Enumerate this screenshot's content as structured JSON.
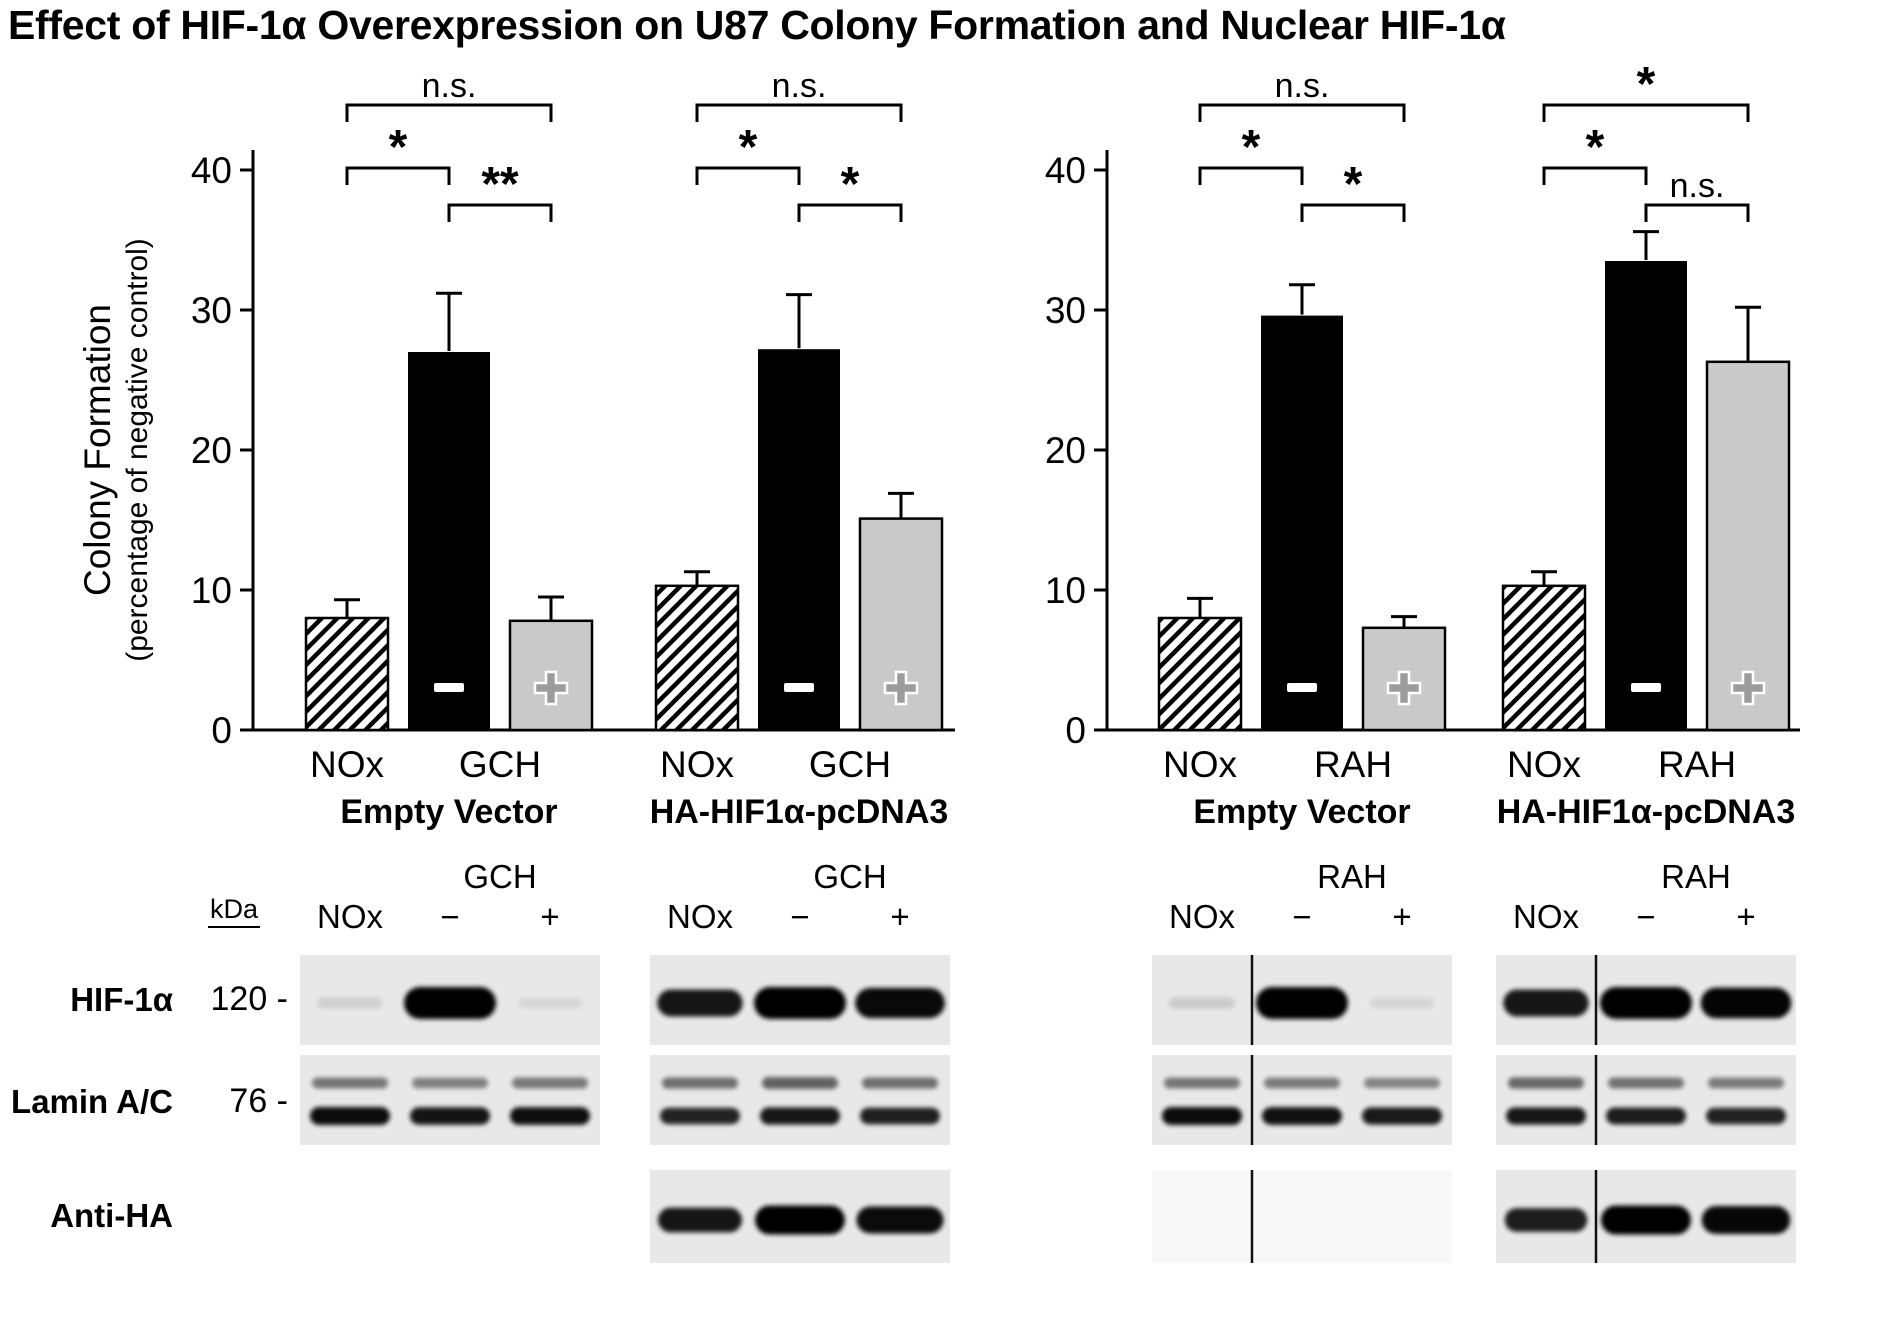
{
  "title": "Effect of HIF-1α Overexpression on U87 Colony Formation and Nuclear HIF-1α",
  "y_axis": {
    "label_line1": "Colony Formation",
    "label_line2": "(percentage of negative control)",
    "ticks": [
      0,
      10,
      20,
      30,
      40
    ],
    "max": 40
  },
  "chart_data": {
    "type": "bar",
    "title": "Effect of HIF-1α Overexpression on U87 Colony Formation and Nuclear HIF-1α",
    "ylabel": "Colony Formation (percentage of negative control)",
    "ylim": [
      0,
      40
    ],
    "grid": false,
    "bar_styles": [
      "hatched",
      "black",
      "gray"
    ],
    "bar_symbols": [
      "",
      "−",
      "+"
    ],
    "groups": [
      {
        "vector": "Empty Vector",
        "treatment": "GCH",
        "categories": [
          "NOx",
          "GCH−",
          "GCH+"
        ],
        "values": [
          8.0,
          27.0,
          7.8
        ],
        "errors": [
          1.3,
          4.2,
          1.7
        ],
        "significance": [
          {
            "from": 0,
            "to": 1,
            "label": "*"
          },
          {
            "from": 1,
            "to": 2,
            "label": "**"
          },
          {
            "from": 0,
            "to": 2,
            "label": "n.s."
          }
        ]
      },
      {
        "vector": "HA-HIF1α-pcDNA3",
        "treatment": "GCH",
        "categories": [
          "NOx",
          "GCH−",
          "GCH+"
        ],
        "values": [
          10.3,
          27.2,
          15.1
        ],
        "errors": [
          1.0,
          3.9,
          1.8
        ],
        "significance": [
          {
            "from": 0,
            "to": 1,
            "label": "*"
          },
          {
            "from": 1,
            "to": 2,
            "label": "*"
          },
          {
            "from": 0,
            "to": 2,
            "label": "n.s."
          }
        ]
      },
      {
        "vector": "Empty Vector",
        "treatment": "RAH",
        "categories": [
          "NOx",
          "RAH−",
          "RAH+"
        ],
        "values": [
          8.0,
          29.6,
          7.3
        ],
        "errors": [
          1.4,
          2.2,
          0.8
        ],
        "significance": [
          {
            "from": 0,
            "to": 1,
            "label": "*"
          },
          {
            "from": 1,
            "to": 2,
            "label": "*"
          },
          {
            "from": 0,
            "to": 2,
            "label": "n.s."
          }
        ]
      },
      {
        "vector": "HA-HIF1α-pcDNA3",
        "treatment": "RAH",
        "categories": [
          "NOx",
          "RAH−",
          "RAH+"
        ],
        "values": [
          10.3,
          33.5,
          26.3
        ],
        "errors": [
          1.0,
          2.1,
          3.9
        ],
        "significance": [
          {
            "from": 0,
            "to": 1,
            "label": "*"
          },
          {
            "from": 1,
            "to": 2,
            "label": "n.s."
          },
          {
            "from": 0,
            "to": 2,
            "label": "*"
          }
        ]
      }
    ]
  },
  "blots": {
    "kda_header": "kDa",
    "lane_labels": [
      "NOx",
      "−",
      "+"
    ],
    "rows": [
      {
        "label": "HIF-1α",
        "kda": "120 -"
      },
      {
        "label": "Lamin A/C",
        "kda": "76 -"
      },
      {
        "label": "Anti-HA",
        "kda": ""
      }
    ],
    "panels": [
      {
        "treatment": "GCH",
        "spliced": false,
        "hif": [
          0.1,
          1.0,
          0.07
        ],
        "lamin_upper": [
          0.5,
          0.42,
          0.48
        ],
        "lamin_lower": [
          1.0,
          0.92,
          0.98
        ],
        "anti_ha": null,
        "anti_ha_panel": false
      },
      {
        "treatment": "GCH",
        "spliced": false,
        "hif": [
          0.78,
          1.0,
          0.92
        ],
        "lamin_upper": [
          0.55,
          0.65,
          0.55
        ],
        "lamin_lower": [
          0.8,
          0.9,
          0.82
        ],
        "anti_ha": [
          0.8,
          1.0,
          0.9
        ],
        "anti_ha_panel": true
      },
      {
        "treatment": "RAH",
        "spliced": true,
        "hif": [
          0.12,
          1.0,
          0.08
        ],
        "lamin_upper": [
          0.5,
          0.45,
          0.38
        ],
        "lamin_lower": [
          1.0,
          0.95,
          0.88
        ],
        "anti_ha": null,
        "anti_ha_panel": true
      },
      {
        "treatment": "RAH",
        "spliced": true,
        "hif": [
          0.78,
          1.0,
          0.95
        ],
        "lamin_upper": [
          0.6,
          0.52,
          0.45
        ],
        "lamin_lower": [
          0.9,
          0.85,
          0.8
        ],
        "anti_ha": [
          0.75,
          1.0,
          0.95
        ],
        "anti_ha_panel": true
      }
    ]
  },
  "colors": {
    "bar_black": "#000000",
    "bar_gray": "#c9c9c9",
    "panel_bg": "#e8e8e8",
    "panel_bg_blank": "#f8f8f8"
  }
}
